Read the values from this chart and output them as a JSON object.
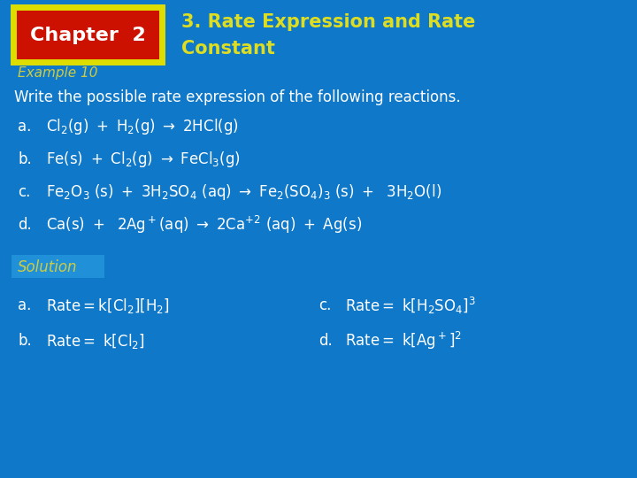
{
  "bg_color": "#1078C8",
  "title_text1": "3. Rate Expression and Rate",
  "title_text2": "Constant",
  "chapter_box_color": "#CC1100",
  "chapter_box_border": "#DDDD00",
  "chapter_text": "Chapter  2",
  "chapter_text_color": "#FFFFFF",
  "example_text": "Example 10",
  "example_color": "#CCCC44",
  "write_text": "Write the possible rate expression of the following reactions.",
  "text_color": "#FFFFFF",
  "title_color": "#DDDD22",
  "solution_color": "#CCCC44",
  "reaction_color": "#FFFFFF",
  "figw": 7.2,
  "figh": 5.4,
  "dpi": 100
}
